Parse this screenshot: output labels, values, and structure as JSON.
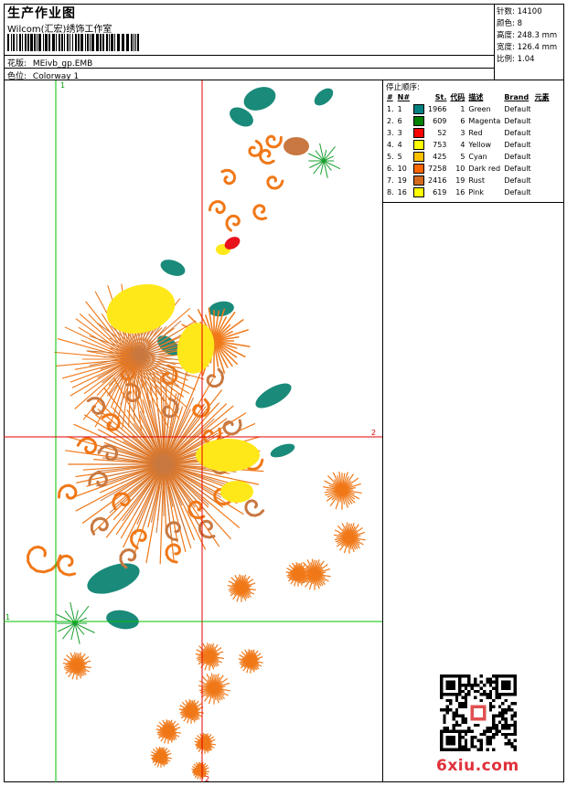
{
  "header": {
    "title": "生产作业图",
    "company": "Wilcom(汇宏)绣饰工作室",
    "design_label": "花版:",
    "design_value": "MEivb_gp.EMB",
    "colorway_label": "色位:",
    "colorway_value": "Colorway 1"
  },
  "stats": [
    {
      "label": "针数:",
      "value": "14100"
    },
    {
      "label": "颜色:",
      "value": "8"
    },
    {
      "label": "高度:",
      "value": "248.3 mm"
    },
    {
      "label": "宽度:",
      "value": "126.4 mm"
    },
    {
      "label": "比例:",
      "value": "1.04"
    }
  ],
  "stop_sequence": {
    "title": "停止顺序:",
    "headers": [
      "#",
      "N#",
      "St.",
      "代码",
      "描述",
      "Brand",
      "元素"
    ],
    "rows": [
      {
        "idx": "1.",
        "n": "1",
        "color": "#008080",
        "stitches": "1966",
        "code": "1",
        "desc": "Green",
        "brand": "Default"
      },
      {
        "idx": "2.",
        "n": "6",
        "color": "#008000",
        "stitches": "609",
        "code": "6",
        "desc": "Magenta",
        "brand": "Default"
      },
      {
        "idx": "3.",
        "n": "3",
        "color": "#ff0000",
        "stitches": "52",
        "code": "3",
        "desc": "Red",
        "brand": "Default"
      },
      {
        "idx": "4.",
        "n": "4",
        "color": "#ffff00",
        "stitches": "753",
        "code": "4",
        "desc": "Yellow",
        "brand": "Default"
      },
      {
        "idx": "5.",
        "n": "5",
        "color": "#ffc000",
        "stitches": "425",
        "code": "5",
        "desc": "Cyan",
        "brand": "Default"
      },
      {
        "idx": "6.",
        "n": "10",
        "color": "#ff6600",
        "stitches": "7258",
        "code": "10",
        "desc": "Dark red",
        "brand": "Default"
      },
      {
        "idx": "7.",
        "n": "19",
        "color": "#d2691e",
        "stitches": "2416",
        "code": "19",
        "desc": "Rust",
        "brand": "Default"
      },
      {
        "idx": "8.",
        "n": "16",
        "color": "#ffff00",
        "stitches": "619",
        "code": "16",
        "desc": "Pink",
        "brand": "Default"
      }
    ]
  },
  "guides": {
    "v1": "1",
    "v2": "2",
    "h1": "1",
    "h2": "2"
  },
  "design_colors": {
    "teal": "#1a8a7a",
    "orange": "#f07818",
    "rust": "#c87840",
    "yellow": "#ffe81a",
    "red": "#e8101a",
    "green": "#1aa030",
    "guide_green": "#00c000",
    "guide_red": "#e00000"
  },
  "watermark": {
    "text": "6xiu.com"
  }
}
